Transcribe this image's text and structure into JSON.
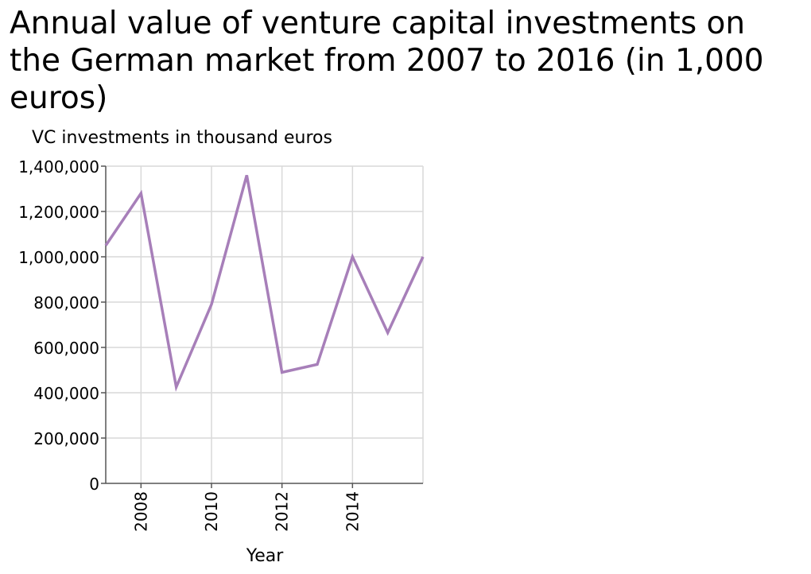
{
  "chart_data": {
    "type": "line",
    "title": "Annual value of venture capital investments on the German market from 2007 to 2016 (in 1,000 euros)",
    "xlabel": "Year",
    "ylabel": "VC investments in thousand euros",
    "xlim": [
      2007,
      2016
    ],
    "ylim": [
      0,
      1400000
    ],
    "x_ticks": [
      2008,
      2010,
      2012,
      2014
    ],
    "x_tick_labels": [
      "2008",
      "2010",
      "2012",
      "2014"
    ],
    "y_ticks": [
      0,
      200000,
      400000,
      600000,
      800000,
      1000000,
      1200000,
      1400000
    ],
    "y_tick_labels": [
      "0",
      "200,000",
      "400,000",
      "600,000",
      "800,000",
      "1,000,000",
      "1,200,000",
      "1,400,000"
    ],
    "grid": true,
    "line_color": "#a77fb9",
    "grid_color": "#d9d9d9",
    "series": [
      {
        "x": [
          2007,
          2008,
          2009,
          2010,
          2011,
          2012,
          2013,
          2014,
          2015,
          2016
        ],
        "values": [
          1050000,
          1280000,
          425000,
          790000,
          1360000,
          490000,
          525000,
          1000000,
          665000,
          1000000
        ]
      }
    ]
  }
}
